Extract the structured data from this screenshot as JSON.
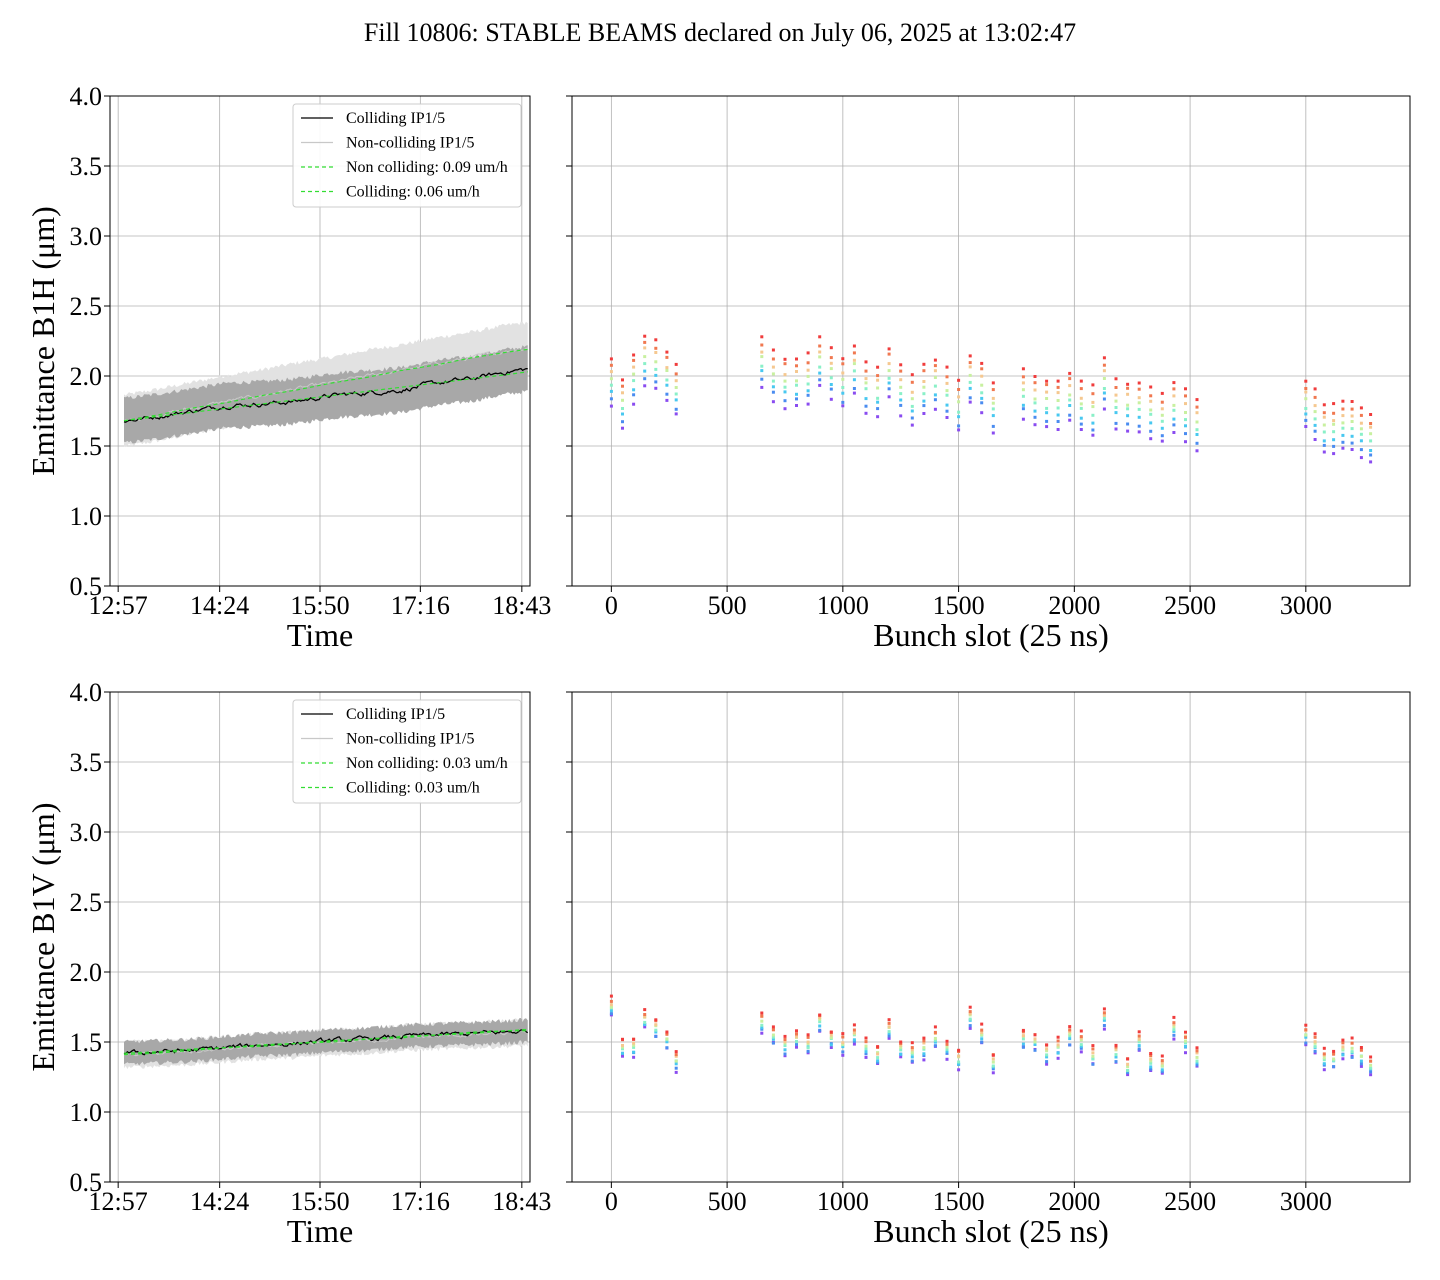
{
  "figure_title": "Fill 10806: STABLE BEAMS declared on July 06, 2025 at 13:02:47",
  "colors": {
    "colliding": "#000000",
    "noncolliding": "#c8c8c8",
    "fit": "#33dd33",
    "band_dark": "#a8a8a8",
    "band_light": "#e2e2e2",
    "grid": "#b0b0b0",
    "bunch_palette": [
      "#8a4cf0",
      "#4a8cf0",
      "#48c8f0",
      "#8af0c8",
      "#c8f0a0",
      "#f5c890",
      "#f07850",
      "#f03c3c"
    ]
  },
  "chart_data": [
    {
      "id": "b1h_time",
      "type": "line",
      "title": "",
      "xlabel": "Time",
      "ylabel": "Emittance B1H (μm)",
      "ylim": [
        0.5,
        4.0
      ],
      "yticks": [
        "0.5",
        "1.0",
        "1.5",
        "2.0",
        "2.5",
        "3.0",
        "3.5",
        "4.0"
      ],
      "xlim": [
        "12:50",
        "18:50"
      ],
      "xticks": [
        "12:57",
        "14:24",
        "15:50",
        "17:16",
        "18:43"
      ],
      "grid": true,
      "legend_position": "top-right",
      "legend": [
        "Colliding IP1/5",
        "Non-colliding IP1/5",
        "Non colliding: 0.09 um/h",
        "Colliding: 0.06 um/h"
      ],
      "x": [
        "13:02",
        "13:30",
        "14:00",
        "14:30",
        "15:00",
        "15:30",
        "16:00",
        "16:30",
        "17:00",
        "17:30",
        "18:00",
        "18:30",
        "18:48"
      ],
      "series": [
        {
          "name": "Colliding IP1/5",
          "values": [
            1.68,
            1.71,
            1.75,
            1.79,
            1.8,
            1.82,
            1.86,
            1.88,
            1.9,
            1.95,
            1.98,
            2.03,
            2.05
          ]
        },
        {
          "name": "Non-colliding IP1/5",
          "values": [
            1.68,
            1.72,
            1.77,
            1.82,
            1.86,
            1.91,
            1.95,
            2.0,
            2.04,
            2.09,
            2.13,
            2.18,
            2.2
          ]
        },
        {
          "name": "Non colliding: 0.09 um/h",
          "values": [
            1.68,
            1.72,
            1.77,
            1.81,
            1.86,
            1.9,
            1.95,
            1.99,
            2.04,
            2.08,
            2.13,
            2.17,
            2.19
          ]
        },
        {
          "name": "Colliding: 0.06 um/h",
          "values": [
            1.68,
            1.71,
            1.74,
            1.77,
            1.8,
            1.83,
            1.86,
            1.89,
            1.92,
            1.95,
            1.98,
            2.01,
            2.03
          ]
        }
      ],
      "band_halfwidth": 0.16
    },
    {
      "id": "b1h_bunch",
      "type": "scatter",
      "title": "",
      "xlabel": "Bunch slot (25 ns)",
      "ylabel": "",
      "xlim": [
        -170,
        3450
      ],
      "ylim": [
        0.5,
        4.0
      ],
      "xticks": [
        "0",
        "500",
        "1000",
        "1500",
        "2000",
        "2500",
        "3000"
      ],
      "grid": true,
      "trains": [
        {
          "x": [
            0,
            48,
            96,
            144,
            192,
            240,
            280
          ],
          "y": [
            1.95,
            1.8,
            1.98,
            2.12,
            2.08,
            2.0,
            1.9
          ]
        },
        {
          "x": [
            650,
            700,
            750,
            800,
            850,
            900,
            950,
            1000,
            1050,
            1100,
            1150,
            1200,
            1250,
            1300,
            1350,
            1400,
            1450,
            1500,
            1550,
            1600,
            1650
          ],
          "y": [
            2.1,
            2.0,
            1.95,
            1.95,
            1.98,
            2.1,
            2.02,
            1.95,
            2.05,
            1.92,
            1.88,
            2.02,
            1.9,
            1.82,
            1.9,
            1.95,
            1.88,
            1.78,
            1.98,
            1.92,
            1.78
          ]
        },
        {
          "x": [
            1780,
            1830,
            1880,
            1930,
            1980,
            2030,
            2080,
            2130,
            2180,
            2230,
            2280,
            2330,
            2380,
            2430,
            2480,
            2530
          ],
          "y": [
            1.88,
            1.82,
            1.8,
            1.8,
            1.85,
            1.78,
            1.75,
            1.95,
            1.8,
            1.78,
            1.78,
            1.74,
            1.7,
            1.78,
            1.72,
            1.65
          ]
        },
        {
          "x": [
            3000,
            3040,
            3080,
            3120,
            3160,
            3200,
            3240,
            3280
          ],
          "y": [
            1.8,
            1.72,
            1.62,
            1.62,
            1.65,
            1.64,
            1.6,
            1.55
          ]
        }
      ],
      "spread": 0.35
    },
    {
      "id": "b1v_time",
      "type": "line",
      "title": "",
      "xlabel": "Time",
      "ylabel": "Emittance B1V (μm)",
      "ylim": [
        0.5,
        4.0
      ],
      "yticks": [
        "0.5",
        "1.0",
        "1.5",
        "2.0",
        "2.5",
        "3.0",
        "3.5",
        "4.0"
      ],
      "xlim": [
        "12:50",
        "18:50"
      ],
      "xticks": [
        "12:57",
        "14:24",
        "15:50",
        "17:16",
        "18:43"
      ],
      "grid": true,
      "legend_position": "top-right",
      "legend": [
        "Colliding IP1/5",
        "Non-colliding IP1/5",
        "Non colliding: 0.03 um/h",
        "Colliding: 0.03 um/h"
      ],
      "x": [
        "13:02",
        "13:30",
        "14:00",
        "14:30",
        "15:00",
        "15:30",
        "16:00",
        "16:30",
        "17:00",
        "17:30",
        "18:00",
        "18:30",
        "18:48"
      ],
      "series": [
        {
          "name": "Colliding IP1/5",
          "values": [
            1.42,
            1.43,
            1.44,
            1.46,
            1.48,
            1.49,
            1.51,
            1.52,
            1.54,
            1.55,
            1.56,
            1.57,
            1.58
          ]
        },
        {
          "name": "Non-colliding IP1/5",
          "values": [
            1.41,
            1.42,
            1.43,
            1.45,
            1.47,
            1.48,
            1.5,
            1.51,
            1.53,
            1.54,
            1.55,
            1.56,
            1.57
          ]
        },
        {
          "name": "Non colliding: 0.03 um/h",
          "values": [
            1.41,
            1.42,
            1.44,
            1.46,
            1.47,
            1.49,
            1.5,
            1.52,
            1.53,
            1.55,
            1.56,
            1.58,
            1.58
          ]
        },
        {
          "name": "Colliding: 0.03 um/h",
          "values": [
            1.42,
            1.43,
            1.45,
            1.46,
            1.48,
            1.49,
            1.51,
            1.52,
            1.54,
            1.55,
            1.57,
            1.58,
            1.59
          ]
        }
      ],
      "band_halfwidth": 0.08
    },
    {
      "id": "b1v_bunch",
      "type": "scatter",
      "title": "",
      "xlabel": "Bunch slot (25 ns)",
      "ylabel": "",
      "xlim": [
        -170,
        3450
      ],
      "ylim": [
        0.5,
        4.0
      ],
      "xticks": [
        "0",
        "500",
        "1000",
        "1500",
        "2000",
        "2500",
        "3000"
      ],
      "grid": true,
      "trains": [
        {
          "x": [
            0,
            48,
            96,
            144,
            192,
            240,
            280
          ],
          "y": [
            1.75,
            1.46,
            1.46,
            1.66,
            1.6,
            1.52,
            1.36
          ]
        },
        {
          "x": [
            650,
            700,
            750,
            800,
            850,
            900,
            950,
            1000,
            1050,
            1100,
            1150,
            1200,
            1250,
            1300,
            1350,
            1400,
            1450,
            1500,
            1550,
            1600,
            1650
          ],
          "y": [
            1.64,
            1.55,
            1.47,
            1.52,
            1.48,
            1.64,
            1.52,
            1.48,
            1.55,
            1.47,
            1.4,
            1.58,
            1.45,
            1.42,
            1.45,
            1.53,
            1.45,
            1.38,
            1.67,
            1.55,
            1.35
          ]
        },
        {
          "x": [
            1780,
            1830,
            1880,
            1930,
            1980,
            2030,
            2080,
            2130,
            2180,
            2230,
            2280,
            2330,
            2380,
            2430,
            2480,
            2530
          ],
          "y": [
            1.52,
            1.5,
            1.42,
            1.46,
            1.54,
            1.5,
            1.4,
            1.67,
            1.42,
            1.32,
            1.5,
            1.35,
            1.33,
            1.6,
            1.5,
            1.38
          ]
        },
        {
          "x": [
            3000,
            3040,
            3080,
            3120,
            3160,
            3200,
            3240,
            3280
          ],
          "y": [
            1.55,
            1.48,
            1.38,
            1.38,
            1.45,
            1.45,
            1.4,
            1.33
          ]
        }
      ],
      "spread": 0.13
    }
  ]
}
